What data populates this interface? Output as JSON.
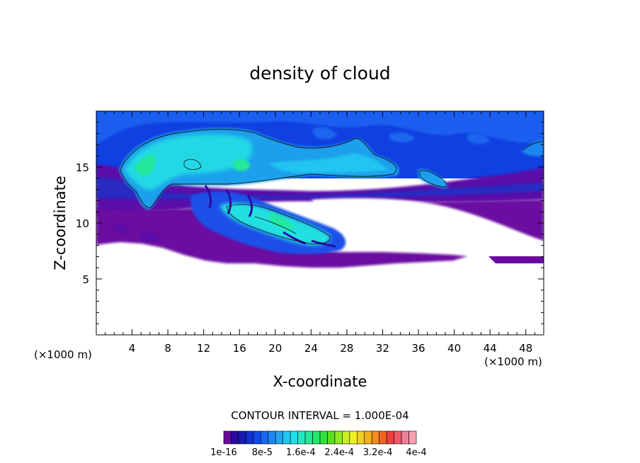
{
  "chart_data": {
    "type": "heatmap",
    "title": "density of cloud",
    "xlabel": "X-coordinate",
    "ylabel": "Z-coordinate",
    "x_unit": "(×1000 m)",
    "z_unit": "(×1000 m)",
    "xlim": [
      0,
      50
    ],
    "ylim": [
      0,
      20
    ],
    "x_ticks": [
      "4",
      "8",
      "12",
      "16",
      "20",
      "24",
      "28",
      "32",
      "36",
      "40",
      "44",
      "48"
    ],
    "y_ticks": [
      "5",
      "10",
      "15"
    ],
    "contour_interval": "CONTOUR INTERVAL = 1.000E-04",
    "colorbar": {
      "colors": [
        "#6a0a9c",
        "#2a0aa0",
        "#1a1ab0",
        "#1030d0",
        "#1048e8",
        "#1a66f0",
        "#1d86f0",
        "#22a4f0",
        "#1ec8f0",
        "#22e0e8",
        "#22e8c0",
        "#22e89a",
        "#22e86c",
        "#2ee040",
        "#5ae022",
        "#90e822",
        "#c8ee22",
        "#f0f022",
        "#f0d022",
        "#f0b022",
        "#f08c22",
        "#f06422",
        "#f04040",
        "#f05a6a",
        "#f08098",
        "#f8a0b0"
      ],
      "labels": [
        "1e-16",
        "8e-5",
        "1.6e-4",
        "2.4e-4",
        "3.2e-4",
        "4e-4"
      ]
    }
  }
}
